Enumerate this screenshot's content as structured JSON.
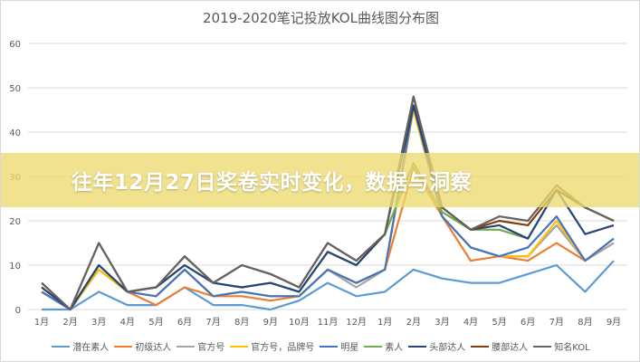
{
  "banner": {
    "text": "往年12月27日奖卷实时变化，数据与洞察"
  },
  "chart_data": {
    "type": "line",
    "title": "2019-2020笔记投放KOL曲线图分布图",
    "categories": [
      "1月",
      "2月",
      "3月",
      "4月",
      "5月",
      "6月",
      "7月",
      "8月",
      "9月",
      "10月",
      "11月",
      "12月",
      "1月",
      "2月",
      "3月",
      "4月",
      "5月",
      "6月",
      "7月",
      "8月",
      "9月"
    ],
    "ylim": [
      0,
      60
    ],
    "yticks": [
      0,
      10,
      20,
      30,
      40,
      50,
      60
    ],
    "grid": true,
    "legend": "bottom",
    "series": [
      {
        "name": "潜在素人",
        "color": "#5b9bd5",
        "values": [
          0,
          0,
          4,
          1,
          1,
          5,
          1,
          1,
          0,
          2,
          6,
          3,
          4,
          9,
          7,
          6,
          6,
          8,
          10,
          4,
          11
        ]
      },
      {
        "name": "初级达人",
        "color": "#ed7d31",
        "values": [
          4,
          0,
          9,
          4,
          1,
          5,
          3,
          3,
          2,
          3,
          9,
          6,
          9,
          32,
          21,
          11,
          12,
          11,
          15,
          11,
          15
        ]
      },
      {
        "name": "官方号",
        "color": "#a5a5a5",
        "values": [
          4,
          0,
          9,
          4,
          3,
          9,
          3,
          4,
          3,
          3,
          9,
          5,
          9,
          45,
          21,
          14,
          12,
          12,
          19,
          11,
          15
        ]
      },
      {
        "name": "官方号，品牌号",
        "color": "#ffc000",
        "values": [
          4,
          0,
          9,
          4,
          3,
          9,
          3,
          4,
          3,
          3,
          9,
          6,
          9,
          45,
          21,
          14,
          12,
          12,
          20,
          11,
          16
        ]
      },
      {
        "name": "明星",
        "color": "#4472c4",
        "values": [
          4,
          0,
          10,
          4,
          3,
          9,
          3,
          4,
          3,
          3,
          9,
          6,
          9,
          46,
          21,
          14,
          12,
          14,
          21,
          11,
          16
        ]
      },
      {
        "name": "素人",
        "color": "#70ad47",
        "values": [
          5,
          0,
          10,
          4,
          5,
          10,
          6,
          5,
          6,
          4,
          13,
          10,
          17,
          33,
          22,
          18,
          18,
          16,
          27,
          23,
          20
        ]
      },
      {
        "name": "头部达人",
        "color": "#264478",
        "values": [
          5,
          0,
          10,
          4,
          5,
          10,
          6,
          5,
          6,
          4,
          13,
          10,
          17,
          46,
          23,
          18,
          19,
          16,
          27,
          17,
          19
        ]
      },
      {
        "name": "腰部达人",
        "color": "#843c0c",
        "values": [
          6,
          0,
          15,
          4,
          5,
          12,
          6,
          10,
          8,
          5,
          15,
          11,
          17,
          48,
          23,
          18,
          20,
          19,
          27,
          23,
          20
        ]
      },
      {
        "name": "知名KOL",
        "color": "#636363",
        "values": [
          6,
          0,
          15,
          4,
          5,
          12,
          6,
          10,
          8,
          5,
          15,
          11,
          17,
          48,
          23,
          18,
          21,
          20,
          28,
          23,
          20
        ]
      }
    ]
  }
}
